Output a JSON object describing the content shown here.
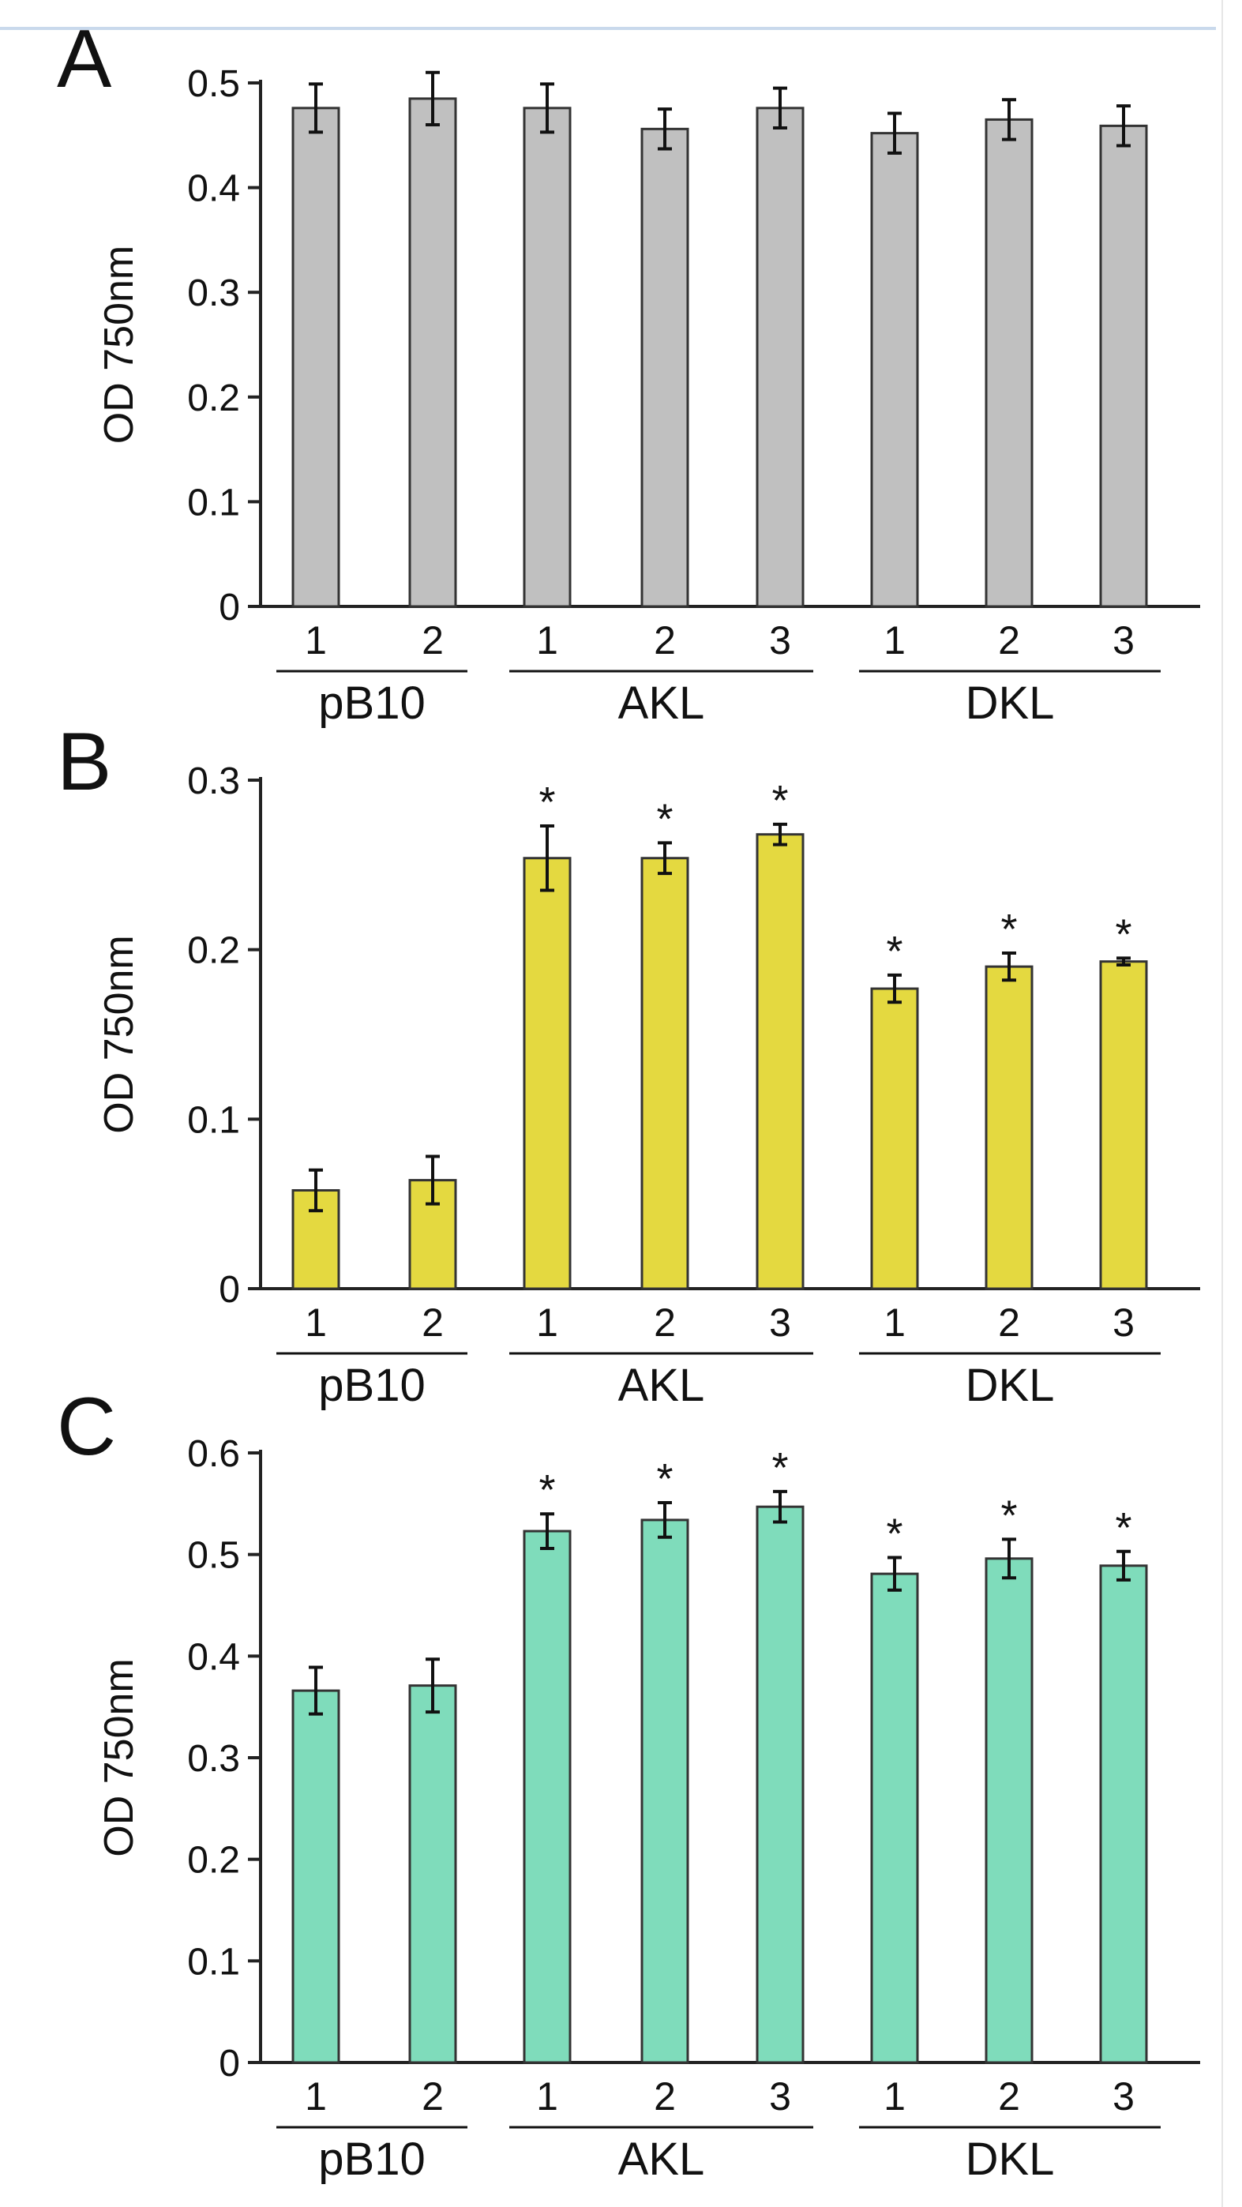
{
  "colors": {
    "top_rule": "#c9d9ec",
    "axis": "#222222",
    "bar_stroke": "#333333"
  },
  "chart_data": [
    {
      "panel_label": "A",
      "type": "bar",
      "ylabel": "OD 750nm",
      "ylim": [
        0,
        0.5
      ],
      "yticks": [
        0,
        0.1,
        0.2,
        0.3,
        0.4,
        0.5
      ],
      "ytick_labels": [
        "0",
        "0.1",
        "0.2",
        "0.3",
        "0.4",
        "0.5"
      ],
      "bar_color": "#c0c0c0",
      "categories": [
        "1",
        "2",
        "1",
        "2",
        "3",
        "1",
        "2",
        "3"
      ],
      "groups": [
        {
          "label": "pB10",
          "count": 2
        },
        {
          "label": "AKL",
          "count": 3
        },
        {
          "label": "DKL",
          "count": 3
        }
      ],
      "values": [
        0.476,
        0.485,
        0.476,
        0.456,
        0.476,
        0.452,
        0.465,
        0.459
      ],
      "errors": [
        0.023,
        0.025,
        0.023,
        0.019,
        0.019,
        0.019,
        0.019,
        0.019
      ],
      "significant": [
        false,
        false,
        false,
        false,
        false,
        false,
        false,
        false
      ]
    },
    {
      "panel_label": "B",
      "type": "bar",
      "ylabel": "OD 750nm",
      "ylim": [
        0,
        0.3
      ],
      "yticks": [
        0,
        0.1,
        0.2,
        0.3
      ],
      "ytick_labels": [
        "0",
        "0.1",
        "0.2",
        "0.3"
      ],
      "bar_color": "#e4d940",
      "categories": [
        "1",
        "2",
        "1",
        "2",
        "3",
        "1",
        "2",
        "3"
      ],
      "groups": [
        {
          "label": "pB10",
          "count": 2
        },
        {
          "label": "AKL",
          "count": 3
        },
        {
          "label": "DKL",
          "count": 3
        }
      ],
      "values": [
        0.058,
        0.064,
        0.254,
        0.254,
        0.268,
        0.177,
        0.19,
        0.193
      ],
      "errors": [
        0.012,
        0.014,
        0.019,
        0.009,
        0.006,
        0.008,
        0.008,
        0.002
      ],
      "significant": [
        false,
        false,
        true,
        true,
        true,
        true,
        true,
        true
      ],
      "significance_marker": "*"
    },
    {
      "panel_label": "C",
      "type": "bar",
      "ylabel": "OD 750nm",
      "ylim": [
        0,
        0.6
      ],
      "yticks": [
        0,
        0.1,
        0.2,
        0.3,
        0.4,
        0.5,
        0.6
      ],
      "ytick_labels": [
        "0",
        "0.1",
        "0.2",
        "0.3",
        "0.4",
        "0.5",
        "0.6"
      ],
      "bar_color": "#7fdcbb",
      "categories": [
        "1",
        "2",
        "1",
        "2",
        "3",
        "1",
        "2",
        "3"
      ],
      "groups": [
        {
          "label": "pB10",
          "count": 2
        },
        {
          "label": "AKL",
          "count": 3
        },
        {
          "label": "DKL",
          "count": 3
        }
      ],
      "values": [
        0.366,
        0.371,
        0.523,
        0.534,
        0.547,
        0.481,
        0.496,
        0.489
      ],
      "errors": [
        0.023,
        0.026,
        0.017,
        0.017,
        0.015,
        0.016,
        0.019,
        0.014
      ],
      "significant": [
        false,
        false,
        true,
        true,
        true,
        true,
        true,
        true
      ],
      "significance_marker": "*"
    }
  ]
}
